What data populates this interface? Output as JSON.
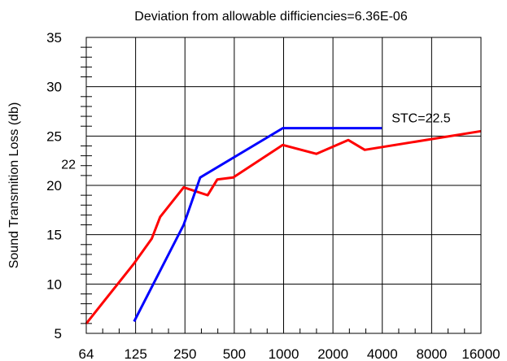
{
  "chart_data": {
    "type": "line",
    "title": "Deviation from allowable difficiencies=6.36E-06",
    "xlabel": "",
    "ylabel": "Sound Transmition Loss (db)",
    "x_scale": "log2",
    "x_ticks": [
      "64",
      "125",
      "250",
      "500",
      "1000",
      "2000",
      "4000",
      "8000",
      "16000"
    ],
    "xlim": [
      64,
      16000
    ],
    "ylim": [
      5,
      35
    ],
    "y_ticks": [
      "5",
      "10",
      "15",
      "20",
      "25",
      "30",
      "35"
    ],
    "grid": true,
    "series": [
      {
        "color": "#ff0000",
        "points": [
          [
            64,
            6
          ],
          [
            125,
            12.1
          ],
          [
            160,
            14.6
          ],
          [
            180,
            16.8
          ],
          [
            250,
            19.8
          ],
          [
            350,
            19.0
          ],
          [
            400,
            20.6
          ],
          [
            500,
            20.8
          ],
          [
            1000,
            24.1
          ],
          [
            1600,
            23.2
          ],
          [
            2500,
            24.6
          ],
          [
            3150,
            23.6
          ],
          [
            16000,
            25.5
          ]
        ]
      },
      {
        "color": "#0000ff",
        "points": [
          [
            125,
            6.2
          ],
          [
            250,
            16
          ],
          [
            315,
            20.8
          ],
          [
            1000,
            25.8
          ],
          [
            4000,
            25.8
          ]
        ]
      }
    ],
    "annotations": [
      {
        "text": "STC=22.5",
        "x": 4000,
        "y": 26.9
      },
      {
        "text": "22",
        "x": 64,
        "y": 22.2
      }
    ]
  }
}
